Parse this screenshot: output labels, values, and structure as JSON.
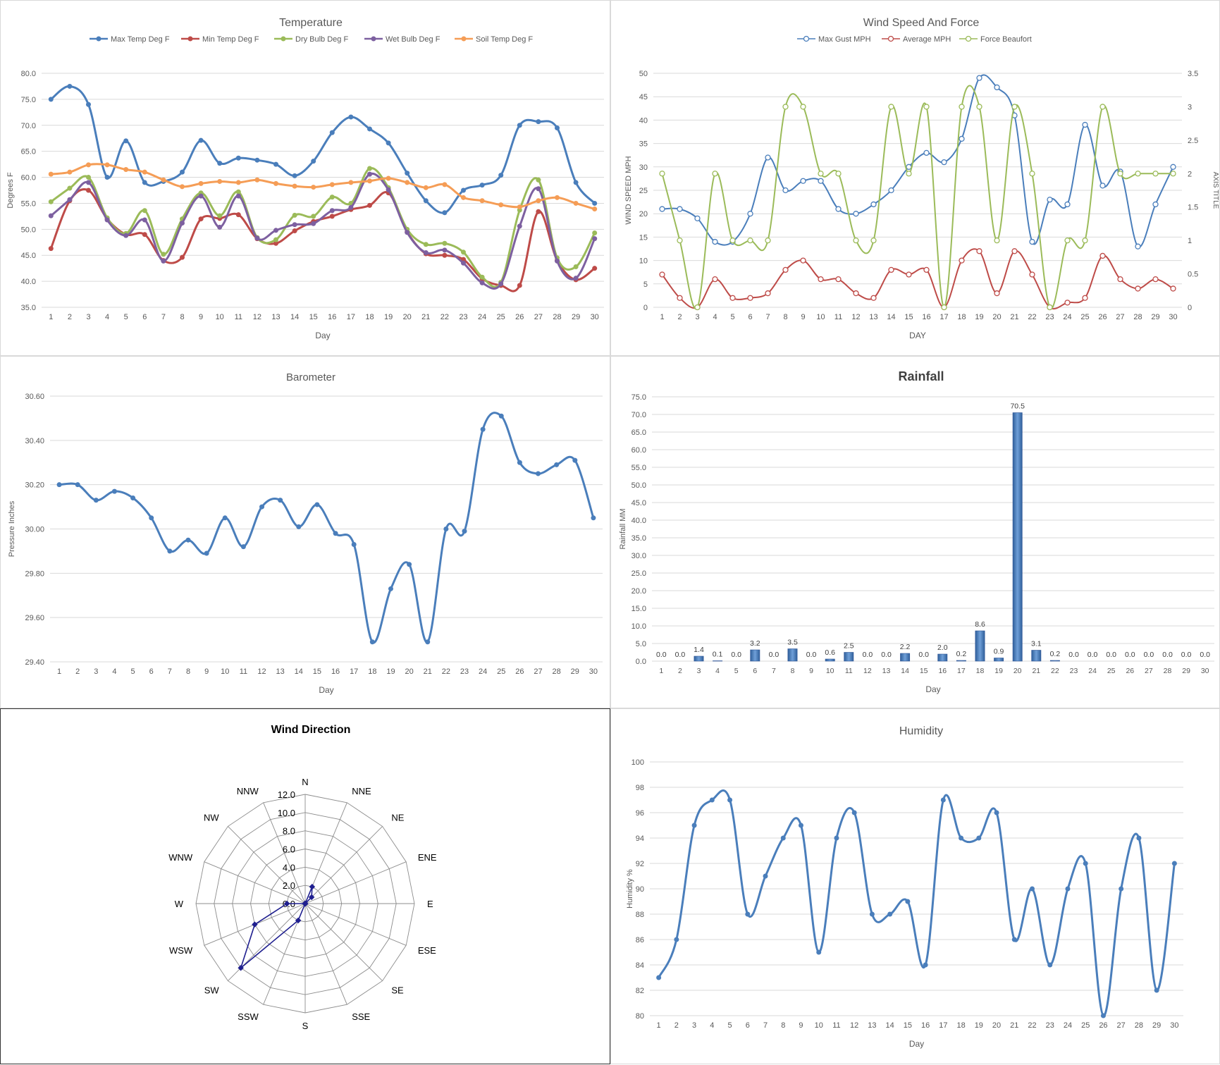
{
  "chart_data": [
    {
      "id": "temp",
      "type": "line",
      "title": "Temperature",
      "xlabel": "Day",
      "ylabel": "Degrees F",
      "ylim": [
        35,
        80
      ],
      "yticks": [
        "35.0",
        "40.0",
        "45.0",
        "50.0",
        "55.0",
        "60.0",
        "65.0",
        "70.0",
        "75.0",
        "80.0"
      ],
      "x": [
        1,
        2,
        3,
        4,
        5,
        6,
        7,
        8,
        9,
        10,
        11,
        12,
        13,
        14,
        15,
        16,
        17,
        18,
        19,
        20,
        21,
        22,
        23,
        24,
        25,
        26,
        27,
        28,
        29,
        30
      ],
      "legend_position": "top",
      "series": [
        {
          "name": "Max Temp Deg F",
          "color": "#4a7ebb",
          "values": [
            75.0,
            77.5,
            74.0,
            60.0,
            67.0,
            59.0,
            59.2,
            61.0,
            67.1,
            62.7,
            63.7,
            63.3,
            62.5,
            60.3,
            63.1,
            68.6,
            71.6,
            69.3,
            66.6,
            60.8,
            55.5,
            53.2,
            57.5,
            58.5,
            60.4,
            70.0,
            70.7,
            69.5,
            59.0,
            55.0
          ]
        },
        {
          "name": "Min Temp Deg F",
          "color": "#be4b48",
          "values": [
            46.3,
            55.5,
            57.5,
            52.0,
            49.0,
            49.0,
            44.0,
            44.6,
            52.0,
            52.1,
            52.8,
            48.2,
            47.3,
            49.7,
            51.5,
            52.5,
            53.8,
            54.6,
            57.0,
            49.5,
            45.3,
            45.0,
            44.2,
            40.5,
            39.2,
            39.2,
            53.4,
            44.0,
            40.3,
            42.5
          ]
        },
        {
          "name": "Dry Bulb Deg F",
          "color": "#9bbb59",
          "values": [
            55.3,
            57.9,
            60.0,
            52.2,
            49.2,
            53.6,
            45.2,
            52.0,
            57.0,
            52.6,
            57.2,
            48.4,
            48.0,
            52.7,
            52.5,
            56.2,
            55.0,
            61.7,
            58.0,
            50.0,
            47.1,
            47.3,
            45.6,
            40.8,
            39.8,
            53.7,
            59.5,
            44.5,
            42.8,
            49.3
          ]
        },
        {
          "name": "Wet Bulb Deg F",
          "color": "#7d60a0",
          "values": [
            52.6,
            55.7,
            59.0,
            51.8,
            48.8,
            51.8,
            43.9,
            51.2,
            56.4,
            50.4,
            56.4,
            48.3,
            49.8,
            50.9,
            51.1,
            53.6,
            54.2,
            60.6,
            57.6,
            49.4,
            45.5,
            46.0,
            43.5,
            39.7,
            39.5,
            50.6,
            57.8,
            43.9,
            40.6,
            48.2
          ]
        },
        {
          "name": "Soil Temp Deg F",
          "color": "#f59d56",
          "values": [
            60.6,
            61.0,
            62.4,
            62.4,
            61.5,
            61.0,
            59.5,
            58.2,
            58.8,
            59.2,
            59.0,
            59.5,
            58.8,
            58.3,
            58.1,
            58.6,
            59.0,
            59.3,
            59.8,
            59.0,
            58.0,
            58.6,
            56.1,
            55.5,
            54.7,
            54.3,
            55.5,
            56.1,
            55.0,
            53.9
          ]
        }
      ]
    },
    {
      "id": "wind",
      "type": "line",
      "title": "Wind Speed And Force",
      "xlabel": "DAY",
      "ylabel": "WIND SPEED MPH",
      "y2label": "AXIS TITLE",
      "ylim": [
        0,
        50
      ],
      "y2lim": [
        0,
        3.5
      ],
      "yticks": [
        "0",
        "5",
        "10",
        "15",
        "20",
        "25",
        "30",
        "35",
        "40",
        "45",
        "50"
      ],
      "y2ticks": [
        "0",
        "0.5",
        "1",
        "1.5",
        "2",
        "2.5",
        "3",
        "3.5"
      ],
      "x": [
        1,
        2,
        3,
        4,
        5,
        6,
        7,
        8,
        9,
        10,
        11,
        12,
        13,
        14,
        15,
        16,
        17,
        18,
        19,
        20,
        21,
        22,
        23,
        24,
        25,
        26,
        27,
        28,
        29,
        30
      ],
      "legend_position": "top",
      "series": [
        {
          "name": "Max Gust MPH",
          "color": "#4a7ebb",
          "axis": "left",
          "values": [
            21,
            21,
            19,
            14,
            14,
            20,
            32,
            25,
            27,
            27,
            21,
            20,
            22,
            25,
            30,
            33,
            31,
            36,
            49,
            47,
            41,
            14,
            23,
            22,
            39,
            26,
            29,
            13,
            22,
            30
          ]
        },
        {
          "name": "Average MPH",
          "color": "#be4b48",
          "axis": "left",
          "values": [
            7,
            2,
            0,
            6,
            2,
            2,
            3,
            8,
            10,
            6,
            6,
            3,
            2,
            8,
            7,
            8,
            0,
            10,
            12,
            3,
            12,
            7,
            0,
            1,
            2,
            11,
            6,
            4,
            6,
            4
          ]
        },
        {
          "name": "Force Beaufort",
          "color": "#9bbb59",
          "axis": "right",
          "values": [
            2,
            1,
            0,
            2,
            1,
            1,
            1,
            3,
            3,
            2,
            2,
            1,
            1,
            3,
            2,
            3,
            0,
            3,
            3,
            1,
            3,
            2,
            0,
            1,
            1,
            3,
            2,
            2,
            2,
            2
          ]
        }
      ]
    },
    {
      "id": "baro",
      "type": "line",
      "title": "Barometer",
      "xlabel": "Day",
      "ylabel": "Pressure Inches",
      "ylim": [
        29.4,
        30.6
      ],
      "yticks": [
        "29.40",
        "29.60",
        "29.80",
        "30.00",
        "30.20",
        "30.40",
        "30.60"
      ],
      "x": [
        1,
        2,
        3,
        4,
        5,
        6,
        7,
        8,
        9,
        10,
        11,
        12,
        13,
        14,
        15,
        16,
        17,
        18,
        19,
        20,
        21,
        22,
        23,
        24,
        25,
        26,
        27,
        28,
        29,
        30
      ],
      "series": [
        {
          "name": "",
          "color": "#4a7ebb",
          "values": [
            30.2,
            30.2,
            30.13,
            30.17,
            30.14,
            30.05,
            29.9,
            29.95,
            29.89,
            30.05,
            29.92,
            30.1,
            30.13,
            30.01,
            30.11,
            29.98,
            29.93,
            29.49,
            29.73,
            29.84,
            29.49,
            30.0,
            29.99,
            30.45,
            30.51,
            30.3,
            30.25,
            30.29,
            30.31,
            30.05
          ]
        }
      ]
    },
    {
      "id": "rain",
      "type": "bar",
      "title": "Rainfall",
      "xlabel": "Day",
      "ylabel": "Rainfall MM",
      "ylim": [
        0,
        75
      ],
      "yticks": [
        "0.0",
        "5.0",
        "10.0",
        "15.0",
        "20.0",
        "25.0",
        "30.0",
        "35.0",
        "40.0",
        "45.0",
        "50.0",
        "55.0",
        "60.0",
        "65.0",
        "70.0",
        "75.0"
      ],
      "categories": [
        "1",
        "2",
        "3",
        "4",
        "5",
        "6",
        "7",
        "8",
        "9",
        "10",
        "11",
        "12",
        "13",
        "14",
        "15",
        "16",
        "17",
        "18",
        "19",
        "20",
        "21",
        "22",
        "23",
        "24",
        "25",
        "26",
        "27",
        "28",
        "29",
        "30"
      ],
      "values": [
        0.0,
        0.0,
        1.4,
        0.1,
        0.0,
        3.2,
        0.0,
        3.5,
        0.0,
        0.6,
        2.5,
        0.0,
        0.0,
        2.2,
        0.0,
        2.0,
        0.2,
        8.6,
        0.9,
        70.5,
        3.1,
        0.2,
        0.0,
        0.0,
        0.0,
        0.0,
        0.0,
        0.0,
        0.0,
        0.0
      ],
      "labels": [
        "0.0",
        "0.0",
        "1.4",
        "0.1",
        "0.0",
        "3.2",
        "0.0",
        "3.5",
        "0.0",
        "0.6",
        "2.5",
        "0.0",
        "0.0",
        "2.2",
        "0.0",
        "2.0",
        "0.2",
        "8.6",
        "0.9",
        "70.5",
        "3.1",
        "0.2",
        "0.0",
        "0.0",
        "0.0",
        "0.0",
        "0.0",
        "0.0",
        "0.0",
        "0.0"
      ],
      "color": "#4a7ebb"
    },
    {
      "id": "dir",
      "type": "radar",
      "title": "Wind Direction",
      "rlim": [
        0,
        12
      ],
      "rticks": [
        "0.0",
        "2.0",
        "4.0",
        "6.0",
        "8.0",
        "10.0",
        "12.0"
      ],
      "categories": [
        "N",
        "NNE",
        "NE",
        "ENE",
        "E",
        "ESE",
        "SE",
        "SSE",
        "S",
        "SSW",
        "SW",
        "WSW",
        "W",
        "WNW",
        "NW",
        "NNW"
      ],
      "values": [
        0,
        2,
        1,
        0,
        0,
        0,
        0,
        0,
        0,
        2,
        10,
        6,
        2,
        0,
        0,
        0
      ],
      "color": "#1f1f8f"
    },
    {
      "id": "hum",
      "type": "line",
      "title": "Humidity",
      "xlabel": "Day",
      "ylabel": "Humidity %",
      "ylim": [
        80,
        100
      ],
      "yticks": [
        "80",
        "82",
        "84",
        "86",
        "88",
        "90",
        "92",
        "94",
        "96",
        "98",
        "100"
      ],
      "x": [
        1,
        2,
        3,
        4,
        5,
        6,
        7,
        8,
        9,
        10,
        11,
        12,
        13,
        14,
        15,
        16,
        17,
        18,
        19,
        20,
        21,
        22,
        23,
        24,
        25,
        26,
        27,
        28,
        29,
        30
      ],
      "series": [
        {
          "name": "",
          "color": "#4a7ebb",
          "values": [
            83,
            86,
            95,
            97,
            97,
            88,
            91,
            94,
            95,
            85,
            94,
            96,
            88,
            88,
            89,
            84,
            97,
            94,
            94,
            96,
            86,
            90,
            84,
            90,
            92,
            80,
            90,
            94,
            82,
            92
          ]
        }
      ]
    }
  ]
}
